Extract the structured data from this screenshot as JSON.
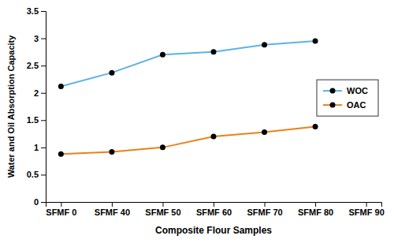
{
  "chart_data": {
    "type": "line",
    "xlabel": "Composite Flour Samples",
    "ylabel": "Water and Oil Absorption Capacity",
    "categories": [
      "SFMF 0",
      "SFMF 40",
      "SFMF 50",
      "SFMF 60",
      "SFMF 70",
      "SFMF 80",
      "SFMF 90"
    ],
    "series": [
      {
        "name": "WOC",
        "color": "#5BB3E8",
        "marker": "circle",
        "values": [
          2.12,
          2.37,
          2.7,
          2.75,
          2.88,
          2.95,
          null
        ]
      },
      {
        "name": "OAC",
        "color": "#E8821A",
        "marker": "circle",
        "values": [
          0.88,
          0.92,
          1.0,
          1.2,
          1.28,
          1.38,
          null
        ]
      }
    ],
    "ylim": [
      0,
      3.5
    ],
    "yticks": [
      0,
      0.5,
      1,
      1.5,
      2,
      2.5,
      3,
      3.5
    ],
    "grid": false,
    "legend": "right"
  }
}
